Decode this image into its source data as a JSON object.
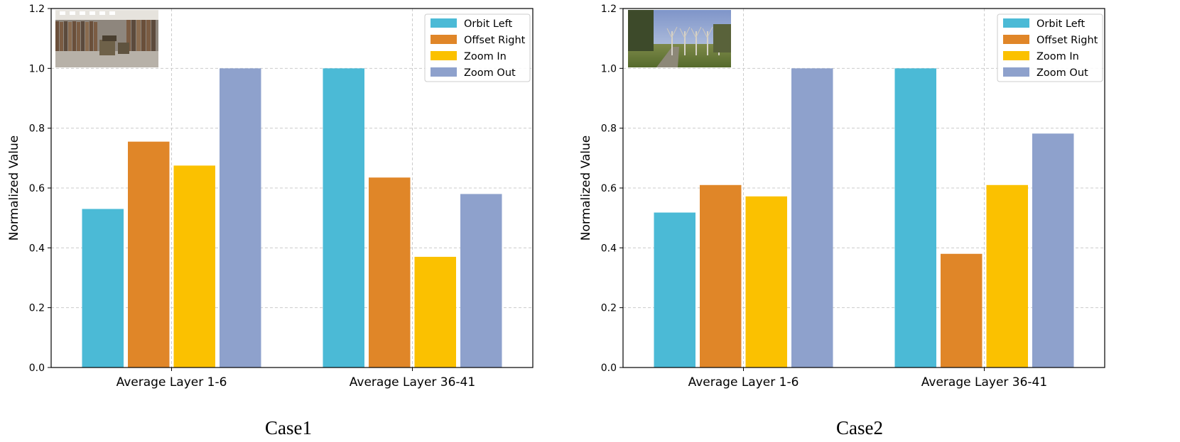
{
  "chart_data": [
    {
      "type": "bar",
      "caption": "Case1",
      "ylabel": "Normalized Value",
      "xlabel": "",
      "title": "",
      "ylim": [
        0,
        1.2
      ],
      "yticks": [
        "0.0",
        "0.2",
        "0.4",
        "0.6",
        "0.8",
        "1.0",
        "1.2"
      ],
      "categories": [
        "Average Layer 1-6",
        "Average Layer 36-41"
      ],
      "series": [
        {
          "name": "Orbit Left",
          "color": "#4bbad6",
          "values": [
            0.53,
            1.0
          ]
        },
        {
          "name": "Offset Right",
          "color": "#e08628",
          "values": [
            0.755,
            0.635
          ]
        },
        {
          "name": "Zoom In",
          "color": "#fbc100",
          "values": [
            0.675,
            0.37
          ]
        },
        {
          "name": "Zoom Out",
          "color": "#8ea1cc",
          "values": [
            1.0,
            0.58
          ]
        }
      ],
      "grid": true,
      "legend_position": "top-right",
      "thumbnail": "indoor-library-photo"
    },
    {
      "type": "bar",
      "caption": "Case2",
      "ylabel": "Normalized Value",
      "xlabel": "",
      "title": "",
      "ylim": [
        0,
        1.2
      ],
      "yticks": [
        "0.0",
        "0.2",
        "0.4",
        "0.6",
        "0.8",
        "1.0",
        "1.2"
      ],
      "categories": [
        "Average Layer 1-6",
        "Average Layer 36-41"
      ],
      "series": [
        {
          "name": "Orbit Left",
          "color": "#4bbad6",
          "values": [
            0.518,
            1.0
          ]
        },
        {
          "name": "Offset Right",
          "color": "#e08628",
          "values": [
            0.61,
            0.38
          ]
        },
        {
          "name": "Zoom In",
          "color": "#fbc100",
          "values": [
            0.572,
            0.61
          ]
        },
        {
          "name": "Zoom Out",
          "color": "#8ea1cc",
          "values": [
            1.0,
            0.782
          ]
        }
      ],
      "grid": true,
      "legend_position": "top-right",
      "thumbnail": "outdoor-park-photo"
    }
  ]
}
